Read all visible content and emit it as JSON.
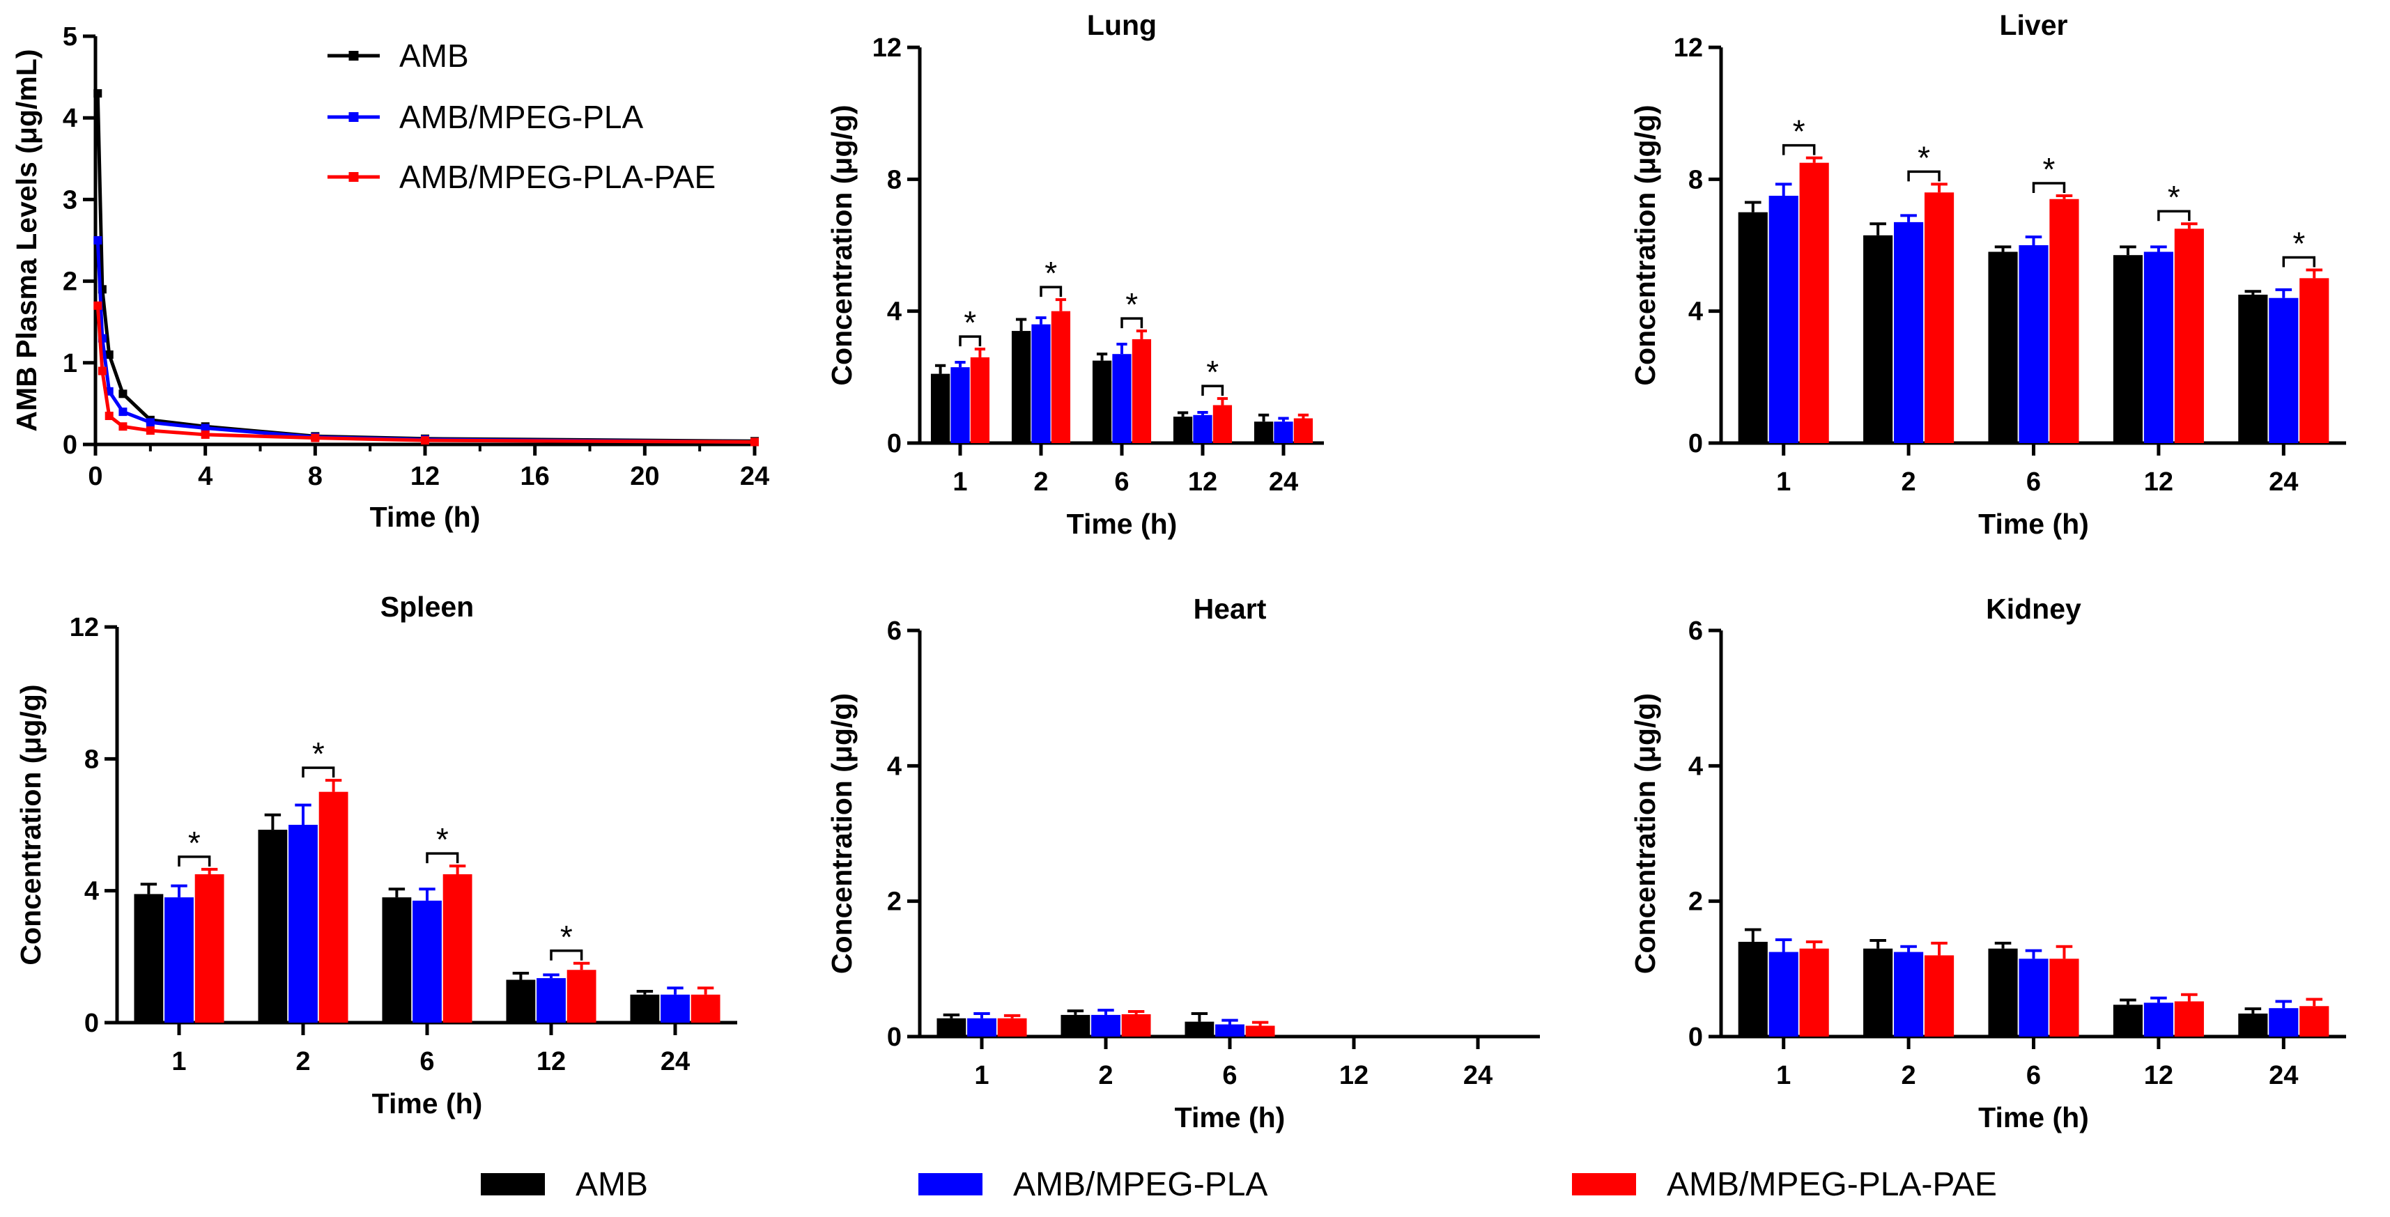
{
  "colors": {
    "AMB": "#000000",
    "AMB/MPEG-PLA": "#0000ff",
    "AMB/MPEG-PLA-PAE": "#ff0000"
  },
  "legend": [
    "AMB",
    "AMB/MPEG-PLA",
    "AMB/MPEG-PLA-PAE"
  ],
  "chart_data": [
    {
      "id": "plasma",
      "type": "line",
      "title": "",
      "xlabel": "Time (h)",
      "ylabel": "AMB Plasma Levels (μg/mL)",
      "xlim": [
        0,
        24
      ],
      "ylim": [
        0,
        5
      ],
      "xticks": [
        0,
        4,
        8,
        12,
        16,
        20,
        24
      ],
      "yticks": [
        0,
        1,
        2,
        3,
        4,
        5
      ],
      "legend_position": "top-right",
      "series": [
        {
          "name": "AMB",
          "x": [
            0.083,
            0.25,
            0.5,
            1,
            2,
            4,
            8,
            12,
            24
          ],
          "y": [
            4.3,
            1.9,
            1.1,
            0.62,
            0.3,
            0.22,
            0.1,
            0.07,
            0.04
          ]
        },
        {
          "name": "AMB/MPEG-PLA",
          "x": [
            0.083,
            0.25,
            0.5,
            1,
            2,
            4,
            8,
            12,
            24
          ],
          "y": [
            2.5,
            1.3,
            0.65,
            0.4,
            0.27,
            0.2,
            0.09,
            0.06,
            0.03
          ]
        },
        {
          "name": "AMB/MPEG-PLA-PAE",
          "x": [
            0.083,
            0.25,
            0.5,
            1,
            2,
            4,
            8,
            12,
            24
          ],
          "y": [
            1.7,
            0.9,
            0.35,
            0.22,
            0.17,
            0.12,
            0.08,
            0.05,
            0.03
          ]
        }
      ]
    },
    {
      "id": "lung",
      "type": "bar",
      "title": "Lung",
      "xlabel": "Time (h)",
      "ylabel": "Concentration (μg/g)",
      "categories": [
        "1",
        "2",
        "6",
        "12",
        "24"
      ],
      "ylim": [
        0,
        12
      ],
      "yticks": [
        0,
        4,
        8,
        12
      ],
      "series": [
        {
          "name": "AMB",
          "values": [
            2.1,
            3.4,
            2.5,
            0.8,
            0.65
          ],
          "errors": [
            0.25,
            0.35,
            0.2,
            0.12,
            0.2
          ]
        },
        {
          "name": "AMB/MPEG-PLA",
          "values": [
            2.3,
            3.6,
            2.7,
            0.85,
            0.65
          ],
          "errors": [
            0.15,
            0.2,
            0.3,
            0.08,
            0.1
          ]
        },
        {
          "name": "AMB/MPEG-PLA-PAE",
          "values": [
            2.6,
            4.0,
            3.15,
            1.15,
            0.75
          ],
          "errors": [
            0.25,
            0.35,
            0.25,
            0.2,
            0.1
          ]
        }
      ],
      "significance": [
        {
          "category": "1",
          "label": "*"
        },
        {
          "category": "2",
          "label": "*"
        },
        {
          "category": "6",
          "label": "*"
        },
        {
          "category": "12",
          "label": "*"
        }
      ]
    },
    {
      "id": "liver",
      "type": "bar",
      "title": "Liver",
      "xlabel": "Time (h)",
      "ylabel": "Concentration (μg/g)",
      "categories": [
        "1",
        "2",
        "6",
        "12",
        "24"
      ],
      "ylim": [
        0,
        12
      ],
      "yticks": [
        0,
        4,
        8,
        12
      ],
      "series": [
        {
          "name": "AMB",
          "values": [
            7.0,
            6.3,
            5.8,
            5.7,
            4.5
          ],
          "errors": [
            0.3,
            0.35,
            0.15,
            0.25,
            0.1
          ]
        },
        {
          "name": "AMB/MPEG-PLA",
          "values": [
            7.5,
            6.7,
            6.0,
            5.8,
            4.4
          ],
          "errors": [
            0.35,
            0.2,
            0.25,
            0.15,
            0.25
          ]
        },
        {
          "name": "AMB/MPEG-PLA-PAE",
          "values": [
            8.5,
            7.6,
            7.4,
            6.5,
            5.0
          ],
          "errors": [
            0.15,
            0.25,
            0.1,
            0.15,
            0.25
          ]
        }
      ],
      "significance": [
        {
          "category": "1",
          "label": "*"
        },
        {
          "category": "2",
          "label": "*"
        },
        {
          "category": "6",
          "label": "*"
        },
        {
          "category": "12",
          "label": "*"
        },
        {
          "category": "24",
          "label": "*"
        }
      ]
    },
    {
      "id": "spleen",
      "type": "bar",
      "title": "Spleen",
      "xlabel": "Time (h)",
      "ylabel": "Concentration (μg/g)",
      "categories": [
        "1",
        "2",
        "6",
        "12",
        "24"
      ],
      "ylim": [
        0,
        12
      ],
      "yticks": [
        0,
        4,
        8,
        12
      ],
      "series": [
        {
          "name": "AMB",
          "values": [
            3.9,
            5.85,
            3.8,
            1.3,
            0.85
          ],
          "errors": [
            0.3,
            0.45,
            0.25,
            0.2,
            0.1
          ]
        },
        {
          "name": "AMB/MPEG-PLA",
          "values": [
            3.8,
            6.0,
            3.7,
            1.35,
            0.85
          ],
          "errors": [
            0.35,
            0.6,
            0.35,
            0.1,
            0.2
          ]
        },
        {
          "name": "AMB/MPEG-PLA-PAE",
          "values": [
            4.5,
            7.0,
            4.5,
            1.6,
            0.85
          ],
          "errors": [
            0.15,
            0.35,
            0.25,
            0.2,
            0.2
          ]
        }
      ],
      "significance": [
        {
          "category": "1",
          "label": "*"
        },
        {
          "category": "2",
          "label": "*"
        },
        {
          "category": "6",
          "label": "*"
        },
        {
          "category": "12",
          "label": "*"
        }
      ]
    },
    {
      "id": "heart",
      "type": "bar",
      "title": "Heart",
      "xlabel": "Time (h)",
      "ylabel": "Concentration (μg/g)",
      "categories": [
        "1",
        "2",
        "6",
        "12",
        "24"
      ],
      "ylim": [
        0,
        6
      ],
      "yticks": [
        0,
        2,
        4,
        6
      ],
      "series": [
        {
          "name": "AMB",
          "values": [
            0.27,
            0.32,
            0.22,
            0,
            0
          ],
          "errors": [
            0.05,
            0.06,
            0.12,
            0,
            0
          ]
        },
        {
          "name": "AMB/MPEG-PLA",
          "values": [
            0.27,
            0.32,
            0.18,
            0,
            0
          ],
          "errors": [
            0.07,
            0.07,
            0.06,
            0,
            0
          ]
        },
        {
          "name": "AMB/MPEG-PLA-PAE",
          "values": [
            0.27,
            0.33,
            0.16,
            0,
            0
          ],
          "errors": [
            0.04,
            0.04,
            0.05,
            0,
            0
          ]
        }
      ],
      "significance": []
    },
    {
      "id": "kidney",
      "type": "bar",
      "title": "Kidney",
      "xlabel": "Time (h)",
      "ylabel": "Concentration (μg/g)",
      "categories": [
        "1",
        "2",
        "6",
        "12",
        "24"
      ],
      "ylim": [
        0,
        6
      ],
      "yticks": [
        0,
        2,
        4,
        6
      ],
      "series": [
        {
          "name": "AMB",
          "values": [
            1.4,
            1.3,
            1.3,
            0.47,
            0.34
          ],
          "errors": [
            0.18,
            0.12,
            0.08,
            0.07,
            0.07
          ]
        },
        {
          "name": "AMB/MPEG-PLA",
          "values": [
            1.25,
            1.25,
            1.15,
            0.5,
            0.42
          ],
          "errors": [
            0.18,
            0.08,
            0.12,
            0.07,
            0.1
          ]
        },
        {
          "name": "AMB/MPEG-PLA-PAE",
          "values": [
            1.3,
            1.2,
            1.15,
            0.52,
            0.45
          ],
          "errors": [
            0.1,
            0.18,
            0.18,
            0.1,
            0.1
          ]
        }
      ],
      "significance": []
    }
  ]
}
